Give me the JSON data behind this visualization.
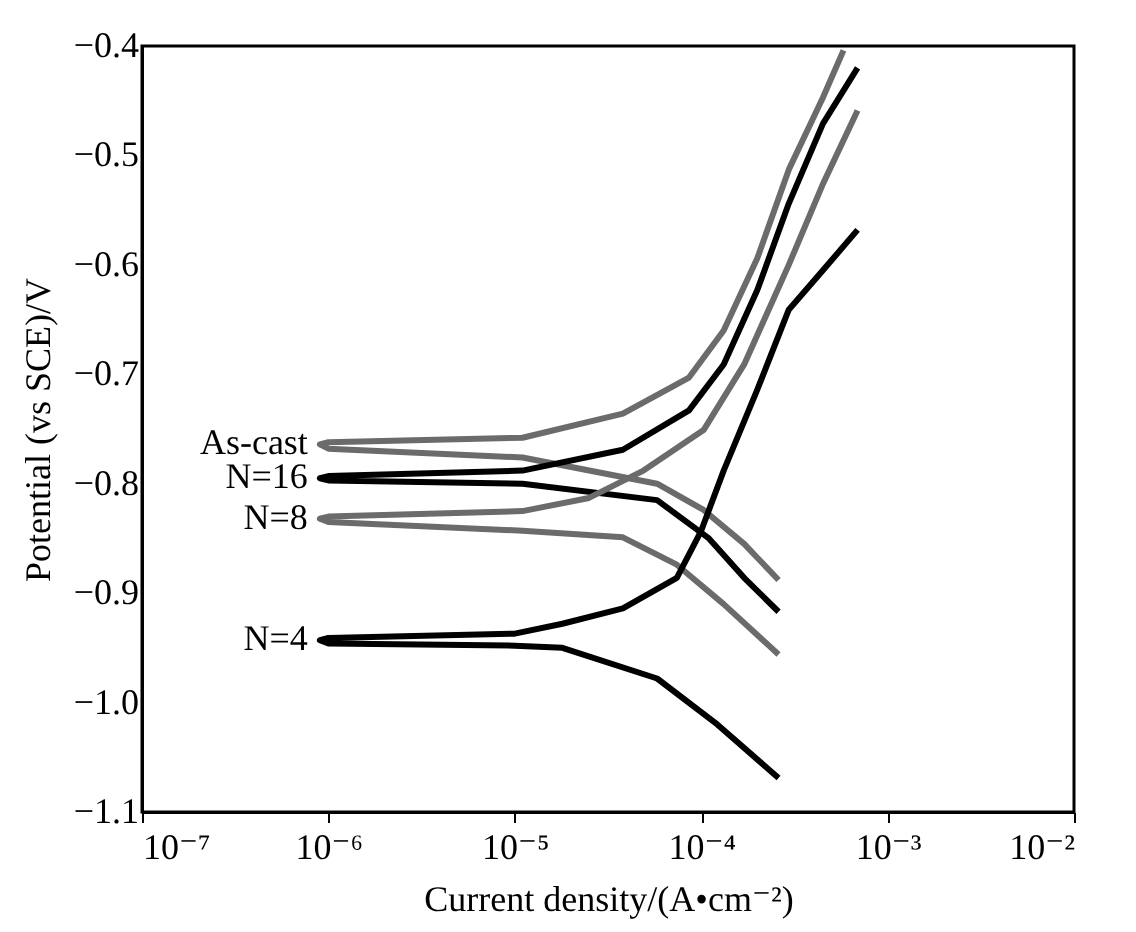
{
  "chart_data": {
    "type": "line",
    "xlabel": "Current density/(A•cm⁻²)",
    "ylabel": "Potential (vs SCE)/V",
    "log": "x",
    "grid": false,
    "legend": false,
    "marker": "none",
    "line_style": "solid",
    "xlim": [
      1e-07,
      0.01
    ],
    "xticks": [
      {
        "value": 1e-07,
        "label": "10⁻⁷"
      },
      {
        "value": 1e-06,
        "label": "10⁻⁶"
      },
      {
        "value": 1e-05,
        "label": "10⁻⁵"
      },
      {
        "value": 0.0001,
        "label": "10⁻⁴"
      },
      {
        "value": 0.001,
        "label": "10⁻³"
      },
      {
        "value": 0.01,
        "label": "10⁻²"
      }
    ],
    "ylim": [
      -1.1,
      -0.4
    ],
    "yticks": [
      -1.1,
      {
        "value": -1.0,
        "label": "−1.0"
      },
      -0.9,
      -0.8,
      -0.7,
      -0.6,
      -0.5,
      -0.4
    ],
    "series": [
      {
        "name": "As-cast",
        "color": "#6b6b6b",
        "x": [
          0.00026,
          0.00017,
          0.000103,
          5.8e-05,
          1.1e-05,
          1e-06,
          9e-07,
          1e-06,
          1.1e-05,
          3.8e-05,
          8.6e-05,
          0.000132,
          0.0002,
          0.000295,
          0.00045,
          0.00058
        ],
        "values": [
          -0.888,
          -0.855,
          -0.824,
          -0.8,
          -0.776,
          -0.768,
          -0.764,
          -0.762,
          -0.758,
          -0.736,
          -0.703,
          -0.66,
          -0.594,
          -0.513,
          -0.447,
          -0.404
        ]
      },
      {
        "name": "N=16",
        "color": "#000000",
        "x": [
          0.00026,
          0.00017,
          0.00011,
          5.8e-05,
          1.1e-05,
          1e-06,
          9e-07,
          1e-06,
          1.1e-05,
          3.8e-05,
          8.6e-05,
          0.000132,
          0.0002,
          0.000295,
          0.00045,
          0.00069
        ],
        "values": [
          -0.917,
          -0.886,
          -0.85,
          -0.815,
          -0.8,
          -0.797,
          -0.795,
          -0.793,
          -0.788,
          -0.769,
          -0.733,
          -0.691,
          -0.623,
          -0.544,
          -0.471,
          -0.42
        ]
      },
      {
        "name": "N=8",
        "color": "#6b6b6b",
        "x": [
          0.00026,
          0.000132,
          7.4e-05,
          3.8e-05,
          1.1e-05,
          1e-06,
          9e-07,
          1e-06,
          1.1e-05,
          2.5e-05,
          4.9e-05,
          0.000103,
          0.00017,
          0.000295,
          0.00045,
          0.00069
        ],
        "values": [
          -0.956,
          -0.91,
          -0.874,
          -0.849,
          -0.843,
          -0.835,
          -0.832,
          -0.83,
          -0.825,
          -0.813,
          -0.788,
          -0.751,
          -0.691,
          -0.6,
          -0.526,
          -0.459
        ]
      },
      {
        "name": "N=4",
        "color": "#000000",
        "x": [
          0.00026,
          0.000122,
          5.8e-05,
          1.8e-05,
          1e-05,
          1e-06,
          9e-07,
          1e-06,
          1e-05,
          1.8e-05,
          3.8e-05,
          7.4e-05,
          0.0001,
          0.000132,
          0.0002,
          0.000295,
          0.00045,
          0.00069
        ],
        "values": [
          -1.069,
          -1.02,
          -0.978,
          -0.95,
          -0.948,
          -0.946,
          -0.943,
          -0.941,
          -0.937,
          -0.928,
          -0.914,
          -0.886,
          -0.843,
          -0.788,
          -0.714,
          -0.641,
          -0.605,
          -0.568
        ]
      }
    ]
  }
}
